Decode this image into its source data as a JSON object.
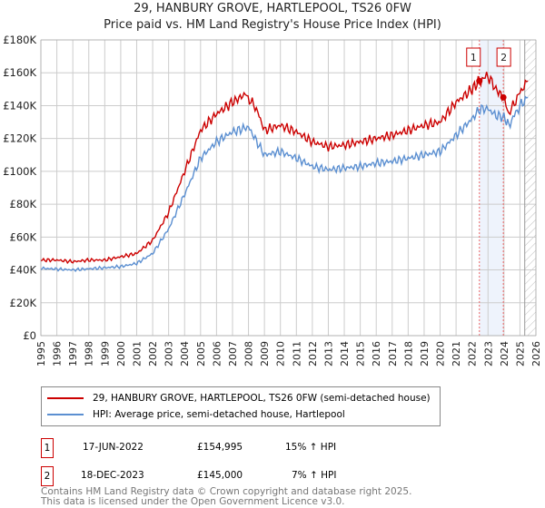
{
  "chart_data": {
    "type": "line",
    "title": "29, HANBURY GROVE, HARTLEPOOL, TS26 0FW",
    "subtitle": "Price paid vs. HM Land Registry's House Price Index (HPI)",
    "xlim": [
      1995,
      2026
    ],
    "ylim": [
      0,
      180000
    ],
    "x_ticks": [
      "1995",
      "1996",
      "1997",
      "1998",
      "1999",
      "2000",
      "2001",
      "2002",
      "2003",
      "2004",
      "2005",
      "2006",
      "2007",
      "2008",
      "2009",
      "2010",
      "2011",
      "2012",
      "2013",
      "2014",
      "2015",
      "2016",
      "2017",
      "2018",
      "2019",
      "2020",
      "2021",
      "2022",
      "2023",
      "2024",
      "2025",
      "2026"
    ],
    "y_ticks": [
      {
        "v": 0,
        "label": "£0"
      },
      {
        "v": 20000,
        "label": "£20K"
      },
      {
        "v": 40000,
        "label": "£40K"
      },
      {
        "v": 60000,
        "label": "£60K"
      },
      {
        "v": 80000,
        "label": "£80K"
      },
      {
        "v": 100000,
        "label": "£100K"
      },
      {
        "v": 120000,
        "label": "£120K"
      },
      {
        "v": 140000,
        "label": "£140K"
      },
      {
        "v": 160000,
        "label": "£160K"
      },
      {
        "v": 180000,
        "label": "£180K"
      }
    ],
    "grid": true,
    "series": [
      {
        "name": "29, HANBURY GROVE, HARTLEPOOL, TS26 0FW (semi-detached house)",
        "color": "#cc0000",
        "x": [
          1995,
          1996,
          1997,
          1998,
          1999,
          2000,
          2001,
          2002,
          2003,
          2004,
          2005,
          2006,
          2007,
          2007.8,
          2008.5,
          2009,
          2010,
          2011,
          2012,
          2013,
          2014,
          2015,
          2016,
          2017,
          2018,
          2019,
          2020,
          2021,
          2022,
          2022.46,
          2023,
          2023.5,
          2023.96,
          2024.3,
          2025,
          2025.5
        ],
        "y": [
          46000,
          46000,
          45000,
          46000,
          46000,
          48000,
          50000,
          58000,
          75000,
          100000,
          125000,
          135000,
          142000,
          147000,
          138000,
          125000,
          128000,
          124000,
          118000,
          115000,
          116000,
          118000,
          120000,
          122000,
          125000,
          128000,
          130000,
          142000,
          150000,
          154995,
          158000,
          150000,
          145000,
          135000,
          148000,
          155000
        ]
      },
      {
        "name": "HPI: Average price, semi-detached house, Hartlepool",
        "color": "#5b8fd1",
        "x": [
          1995,
          1997,
          2000,
          2001,
          2002,
          2003,
          2004,
          2005,
          2006,
          2007,
          2008,
          2009,
          2010,
          2011,
          2012,
          2013,
          2014,
          2015,
          2016,
          2017,
          2018,
          2019,
          2020,
          2021,
          2022,
          2022.5,
          2023,
          2023.5,
          2024,
          2024.3,
          2025,
          2025.5
        ],
        "y": [
          41000,
          40000,
          42000,
          44000,
          50000,
          65000,
          86000,
          108000,
          118000,
          124000,
          127000,
          110000,
          112000,
          108000,
          103000,
          101000,
          102000,
          103000,
          105000,
          106000,
          108000,
          110000,
          112000,
          122000,
          132000,
          138000,
          138000,
          134000,
          133000,
          128000,
          140000,
          145000
        ]
      }
    ],
    "sales": [
      {
        "id": "1",
        "x": 2022.46,
        "y": 154995,
        "date": "17-JUN-2022",
        "price": "£154,995",
        "hpi": "15% ↑ HPI"
      },
      {
        "id": "2",
        "x": 2023.96,
        "y": 145000,
        "date": "18-DEC-2023",
        "price": "£145,000",
        "hpi": "7% ↑ HPI"
      }
    ],
    "legend_placement": "below"
  },
  "footer": {
    "line1": "Contains HM Land Registry data © Crown copyright and database right 2025.",
    "line2": "This data is licensed under the Open Government Licence v3.0."
  }
}
